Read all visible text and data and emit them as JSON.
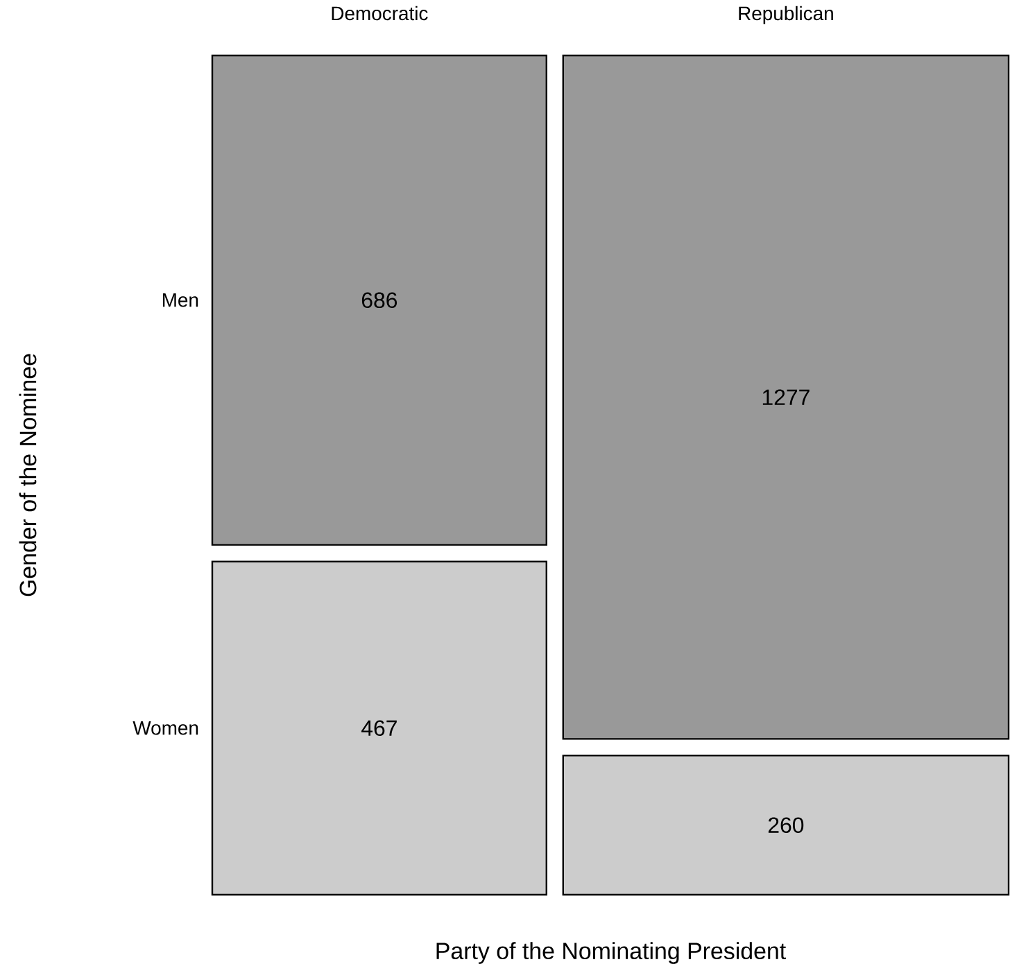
{
  "chart_data": {
    "type": "other",
    "xlabel": "Party of the Nominating President",
    "ylabel": "Gender of the Nominee",
    "categories": [
      "Democratic",
      "Republican"
    ],
    "series": [
      {
        "name": "Men",
        "color": "#999999",
        "values": [
          686,
          1277
        ]
      },
      {
        "name": "Women",
        "color": "#cccccc",
        "values": [
          467,
          260
        ]
      }
    ],
    "data_labels": true
  }
}
